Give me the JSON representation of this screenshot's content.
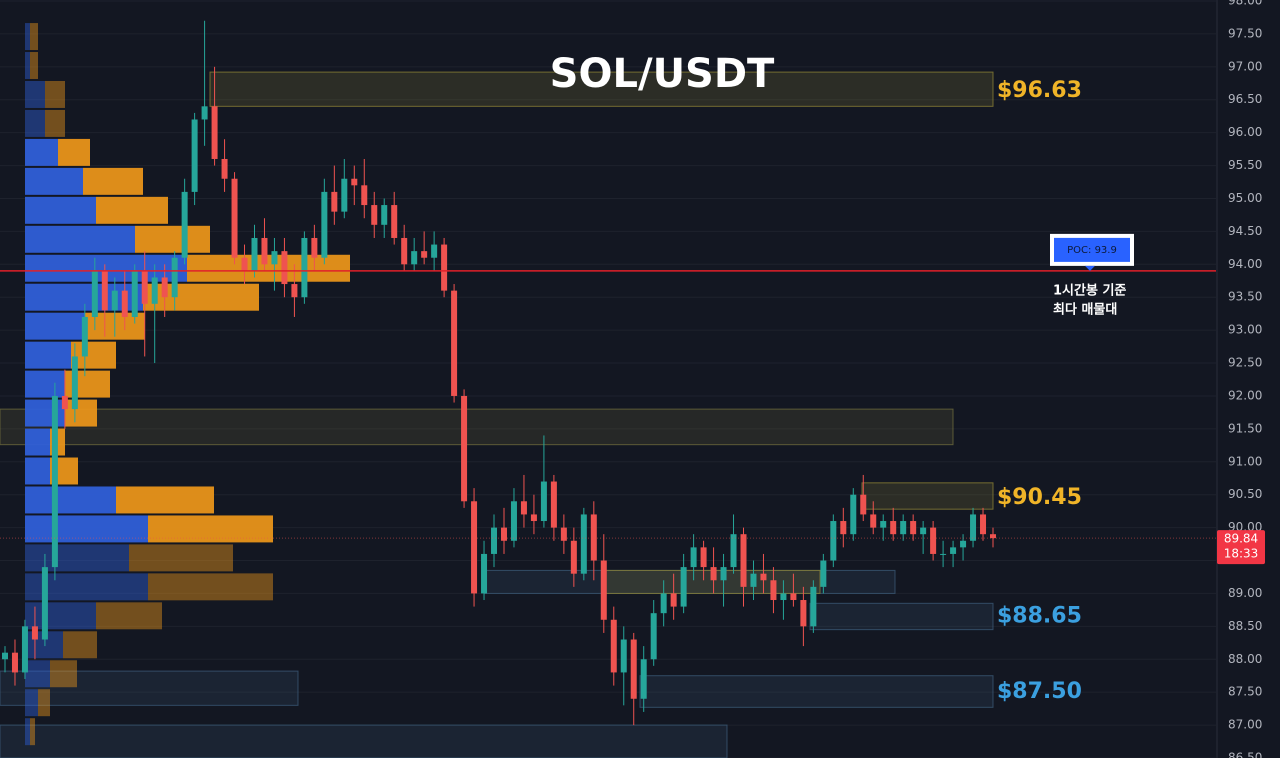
{
  "chart_data": {
    "type": "candlestick",
    "title": "SOL/USDT",
    "ylim": [
      86.5,
      98.0
    ],
    "yticks": [
      {
        "value": 86.5,
        "label": "86.50"
      },
      {
        "value": 87,
        "label": "87.00"
      },
      {
        "value": 87.5,
        "label": "87.50"
      },
      {
        "value": 88,
        "label": "88.00"
      },
      {
        "value": 88.5,
        "label": "88.50"
      },
      {
        "value": 89,
        "label": "89.00"
      },
      {
        "value": 89.5,
        "label": "89.50"
      },
      {
        "value": 90,
        "label": "90.00"
      },
      {
        "value": 90.5,
        "label": "90.50"
      },
      {
        "value": 91,
        "label": "91.00"
      },
      {
        "value": 91.5,
        "label": "91.50"
      },
      {
        "value": 92,
        "label": "92.00"
      },
      {
        "value": 92.5,
        "label": "92.50"
      },
      {
        "value": 93,
        "label": "93.00"
      },
      {
        "value": 93.5,
        "label": "93.50"
      },
      {
        "value": 94,
        "label": "94.00"
      },
      {
        "value": 94.5,
        "label": "94.50"
      },
      {
        "value": 95,
        "label": "95.00"
      },
      {
        "value": 95.5,
        "label": "95.50"
      },
      {
        "value": 96,
        "label": "96.00"
      },
      {
        "value": 96.5,
        "label": "96.50"
      },
      {
        "value": 97,
        "label": "97.00"
      },
      {
        "value": 97.5,
        "label": "97.50"
      },
      {
        "value": 98,
        "label": "98.00"
      }
    ],
    "grid": true,
    "up_color": "#26a69a",
    "down_color": "#ef5350",
    "candles": [
      [
        88.0,
        88.2,
        87.8,
        88.1
      ],
      [
        88.1,
        88.3,
        87.6,
        87.8
      ],
      [
        87.8,
        88.6,
        87.7,
        88.5
      ],
      [
        88.5,
        88.8,
        88.0,
        88.3
      ],
      [
        88.3,
        89.6,
        88.2,
        89.4
      ],
      [
        89.4,
        92.2,
        89.2,
        92.0
      ],
      [
        92.0,
        92.4,
        91.5,
        91.8
      ],
      [
        91.8,
        92.8,
        91.6,
        92.6
      ],
      [
        92.6,
        93.4,
        92.3,
        93.2
      ],
      [
        93.2,
        94.1,
        93.0,
        93.9
      ],
      [
        93.9,
        94.0,
        92.9,
        93.3
      ],
      [
        93.3,
        93.8,
        92.9,
        93.6
      ],
      [
        93.6,
        93.9,
        93.0,
        93.2
      ],
      [
        93.2,
        94.0,
        93.1,
        93.9
      ],
      [
        93.9,
        94.2,
        92.6,
        93.4
      ],
      [
        93.4,
        94.0,
        92.5,
        93.8
      ],
      [
        93.8,
        94.0,
        93.2,
        93.5
      ],
      [
        93.5,
        94.2,
        93.3,
        94.1
      ],
      [
        94.1,
        95.3,
        94.0,
        95.1
      ],
      [
        95.1,
        96.3,
        94.9,
        96.2
      ],
      [
        96.2,
        97.7,
        95.8,
        96.4
      ],
      [
        96.4,
        97.0,
        95.5,
        95.6
      ],
      [
        95.6,
        95.9,
        95.1,
        95.3
      ],
      [
        95.3,
        95.4,
        94.0,
        94.1
      ],
      [
        94.1,
        94.3,
        93.7,
        93.9
      ],
      [
        93.9,
        94.6,
        93.8,
        94.4
      ],
      [
        94.4,
        94.7,
        93.9,
        94.0
      ],
      [
        94.0,
        94.4,
        93.6,
        94.2
      ],
      [
        94.2,
        94.4,
        93.5,
        93.7
      ],
      [
        93.7,
        94.0,
        93.2,
        93.5
      ],
      [
        93.5,
        94.5,
        93.4,
        94.4
      ],
      [
        94.4,
        94.6,
        93.9,
        94.1
      ],
      [
        94.1,
        95.3,
        94.0,
        95.1
      ],
      [
        95.1,
        95.5,
        94.6,
        94.8
      ],
      [
        94.8,
        95.6,
        94.7,
        95.3
      ],
      [
        95.3,
        95.5,
        94.9,
        95.2
      ],
      [
        95.2,
        95.6,
        94.7,
        94.9
      ],
      [
        94.9,
        95.1,
        94.4,
        94.6
      ],
      [
        94.6,
        95.0,
        94.4,
        94.9
      ],
      [
        94.9,
        95.1,
        94.3,
        94.4
      ],
      [
        94.4,
        94.6,
        93.9,
        94.0
      ],
      [
        94.0,
        94.4,
        93.9,
        94.2
      ],
      [
        94.2,
        94.5,
        94.0,
        94.1
      ],
      [
        94.1,
        94.5,
        93.9,
        94.3
      ],
      [
        94.3,
        94.4,
        93.5,
        93.6
      ],
      [
        93.6,
        93.7,
        91.9,
        92.0
      ],
      [
        92.0,
        92.1,
        90.3,
        90.4
      ],
      [
        90.4,
        90.6,
        88.8,
        89.0
      ],
      [
        89.0,
        89.8,
        88.9,
        89.6
      ],
      [
        89.6,
        90.2,
        89.4,
        90.0
      ],
      [
        90.0,
        90.3,
        89.6,
        89.8
      ],
      [
        89.8,
        90.6,
        89.7,
        90.4
      ],
      [
        90.4,
        90.8,
        90.0,
        90.2
      ],
      [
        90.2,
        90.5,
        89.9,
        90.1
      ],
      [
        90.1,
        91.4,
        90.0,
        90.7
      ],
      [
        90.7,
        90.8,
        89.8,
        90.0
      ],
      [
        90.0,
        90.2,
        89.6,
        89.8
      ],
      [
        89.8,
        90.0,
        89.1,
        89.3
      ],
      [
        89.3,
        90.3,
        89.2,
        90.2
      ],
      [
        90.2,
        90.4,
        89.2,
        89.5
      ],
      [
        89.5,
        89.9,
        88.4,
        88.6
      ],
      [
        88.6,
        88.8,
        87.6,
        87.8
      ],
      [
        87.8,
        88.5,
        87.3,
        88.3
      ],
      [
        88.3,
        88.4,
        87.0,
        87.4
      ],
      [
        87.4,
        88.2,
        87.2,
        88.0
      ],
      [
        88.0,
        88.9,
        87.9,
        88.7
      ],
      [
        88.7,
        89.2,
        88.5,
        89.0
      ],
      [
        89.0,
        89.3,
        88.6,
        88.8
      ],
      [
        88.8,
        89.6,
        88.7,
        89.4
      ],
      [
        89.4,
        89.9,
        89.2,
        89.7
      ],
      [
        89.7,
        89.8,
        89.2,
        89.4
      ],
      [
        89.4,
        89.7,
        89.0,
        89.2
      ],
      [
        89.2,
        89.6,
        88.8,
        89.4
      ],
      [
        89.4,
        90.2,
        89.3,
        89.9
      ],
      [
        89.9,
        90.0,
        88.8,
        89.1
      ],
      [
        89.1,
        89.5,
        88.9,
        89.3
      ],
      [
        89.3,
        89.6,
        89.0,
        89.2
      ],
      [
        89.2,
        89.4,
        88.7,
        88.9
      ],
      [
        88.9,
        89.2,
        88.6,
        89.0
      ],
      [
        89.0,
        89.3,
        88.8,
        88.9
      ],
      [
        88.9,
        89.1,
        88.2,
        88.5
      ],
      [
        88.5,
        89.2,
        88.4,
        89.1
      ],
      [
        89.1,
        89.6,
        89.0,
        89.5
      ],
      [
        89.5,
        90.2,
        89.4,
        90.1
      ],
      [
        90.1,
        90.3,
        89.7,
        89.9
      ],
      [
        89.9,
        90.6,
        89.8,
        90.5
      ],
      [
        90.5,
        90.8,
        90.1,
        90.2
      ],
      [
        90.2,
        90.4,
        89.9,
        90.0
      ],
      [
        90.0,
        90.2,
        89.8,
        90.1
      ],
      [
        90.1,
        90.3,
        89.8,
        89.9
      ],
      [
        89.9,
        90.2,
        89.8,
        90.1
      ],
      [
        90.1,
        90.2,
        89.8,
        89.9
      ],
      [
        89.9,
        90.1,
        89.6,
        90.0
      ],
      [
        90.0,
        90.1,
        89.5,
        89.6
      ],
      [
        89.6,
        89.8,
        89.4,
        89.6
      ],
      [
        89.6,
        89.8,
        89.4,
        89.7
      ],
      [
        89.7,
        89.9,
        89.5,
        89.8
      ],
      [
        89.8,
        90.3,
        89.7,
        90.2
      ],
      [
        90.2,
        90.3,
        89.8,
        89.9
      ],
      [
        89.9,
        90.0,
        89.7,
        89.84
      ]
    ],
    "profile": {
      "top": 97.68,
      "step": 0.44,
      "value_area": [
        89.76,
        95.92
      ],
      "buy_color": "#2f5fd8",
      "sell_color": "#e8941a",
      "buy": [
        5,
        5,
        20,
        20,
        33,
        58,
        71,
        110,
        162,
        118,
        60,
        46,
        40,
        40,
        25,
        25,
        91,
        123,
        104,
        123,
        71,
        38,
        25,
        13,
        5
      ],
      "sell": [
        8,
        8,
        20,
        20,
        32,
        60,
        72,
        75,
        163,
        116,
        60,
        45,
        45,
        32,
        15,
        28,
        98,
        125,
        104,
        125,
        66,
        34,
        27,
        12,
        5
      ]
    },
    "zones": [
      {
        "low": 96.4,
        "high": 96.92,
        "color": "#8a7f35",
        "level": {
          "value": 96.63,
          "label": "$96.63"
        },
        "level_color": "#f0b428"
      },
      {
        "low": 91.26,
        "high": 91.8,
        "color": "#6d6a3c"
      },
      {
        "low": 90.28,
        "high": 90.68,
        "color": "#8a7f35",
        "level": {
          "value": 90.45,
          "label": "$90.45"
        },
        "level_color": "#f0b428"
      },
      {
        "low": 89.0,
        "high": 89.35,
        "color": "#3a5874"
      },
      {
        "low": 89.0,
        "high": 89.35,
        "color": "#8a7f35"
      },
      {
        "low": 88.45,
        "high": 88.85,
        "color": "#3a5874",
        "level": {
          "value": 88.65,
          "label": "$88.65"
        },
        "level_color": "#3ba0e0"
      },
      {
        "low": 87.27,
        "high": 87.75,
        "color": "#3a5874",
        "level": {
          "value": 87.5,
          "label": "$87.50"
        },
        "level_color": "#3ba0e0"
      },
      {
        "low": 87.3,
        "high": 87.82,
        "color": "#3a5874"
      },
      {
        "low": 86.5,
        "high": 87.0,
        "color": "#3a5874"
      }
    ],
    "poc": {
      "value": 93.9,
      "label": "POC: 93.9",
      "color": "#e0202a"
    },
    "annotation": [
      "1시간봉 기준",
      "최다 매물대"
    ],
    "last_price": 89.84,
    "countdown": "18:33"
  }
}
